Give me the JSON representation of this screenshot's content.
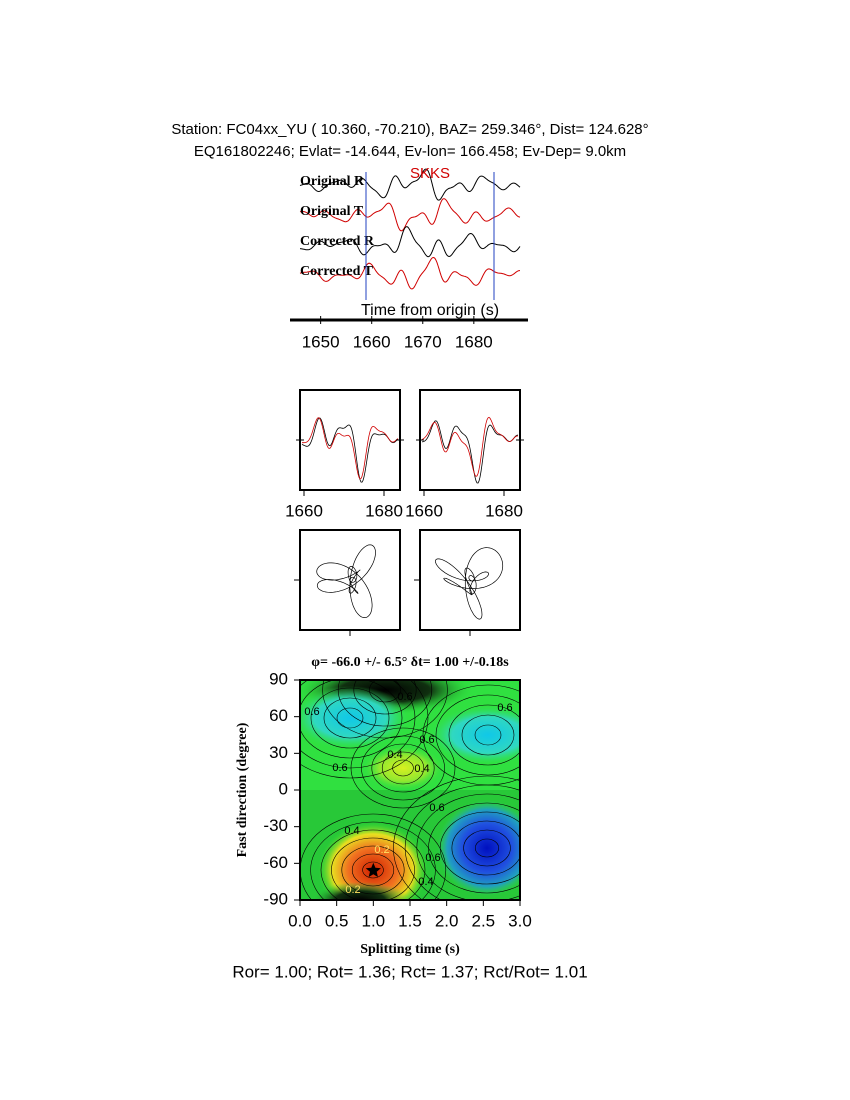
{
  "header": {
    "line1": "Station: FC04xx_YU (  10.360,  -70.210), BAZ=  259.346°, Dist=  124.628°",
    "line2": "EQ161802246; Evlat= -14.644, Ev-lon= 166.458; Ev-Dep=  9.0km"
  },
  "traces": {
    "labels": [
      "Original R",
      "Original T",
      "Corrected R",
      "Corrected T"
    ],
    "phase": "SKKS",
    "xlabel": "Time from origin (s)",
    "xlim": [
      1644,
      1691
    ],
    "xticks": [
      1650,
      1660,
      1670,
      1680
    ]
  },
  "windows": {
    "xlim": [
      1659,
      1684
    ],
    "xticks": [
      1660,
      1680
    ]
  },
  "grid_search": {
    "title": "φ= -66.0 +/- 6.5° δt= 1.00 +/-0.18s",
    "xlabel": "Splitting time (s)",
    "ylabel": "Fast direction (degree)",
    "xlim": [
      0,
      3
    ],
    "ylim": [
      -90,
      90
    ],
    "xticks": [
      {
        "value": 0,
        "label": "0.0"
      },
      {
        "value": 0.5,
        "label": "0.5"
      },
      {
        "value": 1,
        "label": "1.0"
      },
      {
        "value": 1.5,
        "label": "1.5"
      },
      {
        "value": 2,
        "label": "2.0"
      },
      {
        "value": 2.5,
        "label": "2.5"
      },
      {
        "value": 3,
        "label": "3.0"
      }
    ],
    "yticks": [
      -90,
      -60,
      -30,
      0,
      30,
      60,
      90
    ],
    "best": {
      "dt": 1.0,
      "phi": -66.0
    },
    "contour_labels": [
      "0.6",
      "0.6",
      "0.6",
      "0.6",
      "0.4",
      "0.4",
      "0.6",
      "0.6",
      "0.4",
      "0.2",
      "0.6",
      "0.4",
      "0.2"
    ]
  },
  "footer": "Ror= 1.00; Rot= 1.36; Rct= 1.37; Rct/Rot= 1.01"
}
